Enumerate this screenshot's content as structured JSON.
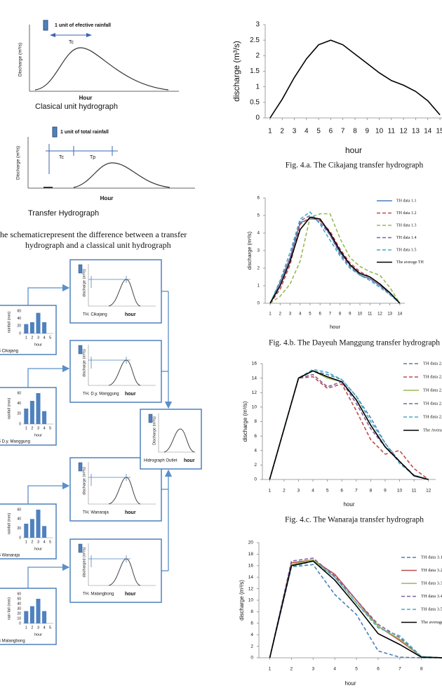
{
  "schematic": {
    "classical": {
      "legend": "1 unit of efective rainfall",
      "tc": "Tc",
      "y_label": "Discharge (m³/s)",
      "x_label": "Hour",
      "caption": "Clasical unit hydrograph"
    },
    "transfer": {
      "legend": "1 unit of total rainfall",
      "tc": "Tc",
      "tp": "Tp",
      "y_label": "Discharge  (m³/s)",
      "x_label": "Hour",
      "caption": "Transfer Hydrograph"
    },
    "caption_lines": [
      "he schematicrepresent the difference between a transfer",
      "hydrograph and a classical unit hydrograph"
    ]
  },
  "flow_diagram": {
    "stations": [
      {
        "label": "S Cikajang",
        "y_label": "rainfall (mm)",
        "x_label": "hour",
        "categories": [
          "1",
          "2",
          "3",
          "4",
          "5"
        ],
        "values": [
          25,
          30,
          55,
          30,
          null
        ],
        "yticks": [
          0,
          20,
          40,
          60
        ],
        "color": "#4f81bd"
      },
      {
        "label": "S D.y. Manggung",
        "y_label": "rainfall (mm)",
        "x_label": "hour",
        "categories": [
          "1",
          "2",
          "3",
          "4",
          "5"
        ],
        "values": [
          30,
          45,
          60,
          25,
          null
        ],
        "yticks": [
          0,
          20,
          40,
          60
        ],
        "color": "#4f81bd"
      },
      {
        "label": "S Wanaraja",
        "y_label": "rainfall (mm)",
        "x_label": "hour",
        "categories": [
          "1",
          "2",
          "3",
          "4",
          "5"
        ],
        "values": [
          30,
          40,
          60,
          25,
          null
        ],
        "yticks": [
          0,
          20,
          40,
          60
        ],
        "color": "#4f81bd"
      },
      {
        "label": "S Malangbong",
        "y_label": "rain fall (mm)",
        "x_label": "hour",
        "categories": [
          "1",
          "2",
          "3",
          "4",
          "5"
        ],
        "values": [
          25,
          35,
          50,
          25,
          null
        ],
        "yticks": [
          0,
          10,
          20,
          30,
          40,
          50,
          60
        ],
        "color": "#4f81bd"
      }
    ],
    "hydrographs": [
      {
        "label": "TH. Cikajang",
        "y_label": "discharge (m³/s)",
        "x_label": "hour"
      },
      {
        "label": "TH. D.y. Manggung",
        "y_label": "discharge (m³/s)",
        "x_label": "hour"
      },
      {
        "label": "TH. Wanaraja",
        "y_label": "discharge (m³/s)",
        "x_label": "hour"
      },
      {
        "label": "TH. Malangbong",
        "y_label": "discharged (m³/s)",
        "x_label": "hour"
      }
    ],
    "outlet": {
      "label": "Hidrograph Outlet",
      "y_label": "Discharge (m³/s)",
      "x_label": "hour"
    }
  },
  "chart_data": [
    {
      "type": "line",
      "x_label": "hour",
      "y_label": "discharge (m³/s)",
      "caption": "Fig. 4.a. The Cikajang transfer hydrograph",
      "x": [
        1,
        2,
        3,
        4,
        5,
        6,
        7,
        8,
        9,
        10,
        11,
        12,
        13,
        14,
        15
      ],
      "values": [
        0,
        0.6,
        1.3,
        1.9,
        2.35,
        2.5,
        2.35,
        2.05,
        1.75,
        1.45,
        1.2,
        1.05,
        0.85,
        0.55,
        0.1
      ],
      "color": "#000000",
      "xlim": [
        0.6,
        15.17
      ],
      "xticks": [
        1,
        2,
        3,
        4,
        5,
        6,
        7,
        8,
        9,
        10,
        11,
        12,
        13,
        14,
        15
      ],
      "ylim": [
        0,
        3
      ],
      "yticks": [
        0,
        0.5,
        1,
        1.5,
        2,
        2.5,
        3
      ]
    },
    {
      "type": "line",
      "x_label": "hour",
      "y_label": "discharge (m³/s)",
      "caption": "Fig. 4.b. The Dayeuh Manggung transfer hydrograph",
      "x": [
        1,
        2,
        3,
        4,
        5,
        6,
        7,
        8,
        9,
        10,
        11,
        12,
        13,
        14
      ],
      "series": [
        {
          "name": "TH data 1.1",
          "color": "#4a7ebb",
          "dashed": false,
          "values": [
            0,
            1.2,
            2.6,
            4.6,
            4.8,
            4.8,
            3.9,
            2.9,
            2.2,
            1.6,
            1.4,
            1.0,
            0.6,
            0
          ]
        },
        {
          "name": "TH data 1.2",
          "color": "#be4b48",
          "dashed": true,
          "values": [
            0,
            0.8,
            2.2,
            4.5,
            4.9,
            4.7,
            4.1,
            3.1,
            2.3,
            1.8,
            1.5,
            1.1,
            0.6,
            0
          ]
        },
        {
          "name": "TH data 1.3",
          "color": "#98b954",
          "dashed": true,
          "values": [
            0,
            0.4,
            1.1,
            2.4,
            4.9,
            5.1,
            5.1,
            3.7,
            2.6,
            2.1,
            1.8,
            1.6,
            0.9,
            0
          ]
        },
        {
          "name": "TH data 1.4",
          "color": "#7d60a0",
          "dashed": true,
          "values": [
            0,
            1.2,
            2.6,
            4.7,
            5.0,
            4.6,
            3.9,
            2.8,
            2.1,
            1.6,
            1.4,
            1.0,
            0.5,
            0
          ]
        },
        {
          "name": "TH data 1.5",
          "color": "#46aac5",
          "dashed": true,
          "values": [
            0,
            1.3,
            2.9,
            4.8,
            5.2,
            4.5,
            3.6,
            2.7,
            2.0,
            1.6,
            1.3,
            0.9,
            0.5,
            0
          ]
        },
        {
          "name": "The average TH",
          "color": "#000000",
          "dashed": false,
          "values": [
            0,
            1.0,
            2.4,
            4.2,
            4.9,
            4.8,
            4.0,
            3.0,
            2.2,
            1.7,
            1.5,
            1.1,
            0.6,
            0
          ]
        }
      ],
      "xlim": [
        0.5,
        14.5
      ],
      "xticks": [
        1,
        2,
        3,
        4,
        5,
        6,
        7,
        8,
        9,
        10,
        11,
        12,
        13,
        14
      ],
      "ylim": [
        0,
        6
      ],
      "yticks": [
        0,
        1,
        2,
        3,
        4,
        5,
        6
      ]
    },
    {
      "type": "line",
      "x_label": "hour",
      "y_label": "discharge (m³/s)",
      "caption": "Fig. 4.c. The Wanaraja transfer hydrograph",
      "x": [
        1,
        2,
        3,
        4,
        5,
        6,
        7,
        8,
        9,
        10,
        11,
        12
      ],
      "series": [
        {
          "name": "TH data 2.1",
          "color": "#4a7ebb",
          "dashed": true,
          "values": [
            0,
            7,
            14,
            15,
            14.5,
            13.8,
            11.5,
            8.5,
            5,
            2.5,
            0.6,
            0
          ]
        },
        {
          "name": "TH data 2.2",
          "color": "#be4b48",
          "dashed": true,
          "values": [
            0,
            7,
            14,
            14.2,
            12.6,
            13.2,
            9.5,
            5.5,
            3.5,
            4,
            1.5,
            0
          ]
        },
        {
          "name": "TH data 2.3",
          "color": "#98b954",
          "dashed": false,
          "values": [
            0,
            7,
            14,
            15,
            14,
            13.5,
            11,
            7.5,
            4.5,
            2.5,
            0.5,
            0
          ]
        },
        {
          "name": "TH data 2.4",
          "color": "#7d60a0",
          "dashed": true,
          "values": [
            0,
            7,
            14,
            14.5,
            12.8,
            13.5,
            10.5,
            7,
            4.5,
            2.5,
            0.5,
            0
          ]
        },
        {
          "name": "TH data 2.5",
          "color": "#46aac5",
          "dashed": true,
          "values": [
            0,
            7,
            14,
            15.2,
            14.8,
            13.8,
            11.5,
            8,
            5,
            2.2,
            0.6,
            0
          ]
        },
        {
          "name": "The Average TH",
          "color": "#000000",
          "dashed": false,
          "values": [
            0,
            7,
            14,
            15,
            14.2,
            13.5,
            11,
            7.5,
            4.5,
            2.5,
            0.5,
            0
          ]
        }
      ],
      "xlim": [
        0.5,
        12.5
      ],
      "xticks": [
        1,
        2,
        3,
        4,
        5,
        6,
        7,
        8,
        9,
        10,
        11,
        12
      ],
      "ylim": [
        0,
        16
      ],
      "yticks": [
        0,
        2,
        4,
        6,
        8,
        10,
        12,
        14,
        16
      ]
    },
    {
      "type": "line",
      "x_label": "hour",
      "y_label": "discharge (m³/s)",
      "x": [
        1,
        2,
        3,
        4,
        5,
        6,
        7,
        8,
        9
      ],
      "series": [
        {
          "name": "TH data 3.1",
          "color": "#4a7ebb",
          "dashed": true,
          "values": [
            0,
            15.8,
            16.2,
            11,
            7.5,
            1.2,
            0.1,
            0,
            0
          ]
        },
        {
          "name": "TH data 3.2",
          "color": "#be4b48",
          "dashed": false,
          "values": [
            0,
            16.5,
            17,
            14.5,
            10,
            5.5,
            3,
            0.2,
            0
          ]
        },
        {
          "name": "TH data 3.3",
          "color": "#98b954",
          "dashed": false,
          "values": [
            0,
            16.2,
            17,
            14,
            9.5,
            5.5,
            3.2,
            0.2,
            0
          ]
        },
        {
          "name": "TH data 3.4",
          "color": "#7d60a0",
          "dashed": true,
          "values": [
            0,
            16.8,
            17.3,
            14.2,
            10,
            5.8,
            3.5,
            0.2,
            0
          ]
        },
        {
          "name": "TH data 3.5",
          "color": "#46aac5",
          "dashed": true,
          "values": [
            0,
            15.8,
            16.8,
            14,
            9.5,
            5.2,
            3.8,
            0.2,
            0
          ]
        },
        {
          "name": "The average TH",
          "color": "#000000",
          "dashed": false,
          "values": [
            0,
            16,
            16.8,
            13.5,
            9,
            4.2,
            2.3,
            0.1,
            0
          ]
        }
      ],
      "xlim": [
        0.5,
        9.3
      ],
      "xticks": [
        1,
        2,
        3,
        4,
        5,
        6,
        7,
        8
      ],
      "ylim": [
        0,
        20
      ],
      "yticks": [
        0,
        2,
        4,
        6,
        8,
        10,
        12,
        14,
        16,
        18,
        20
      ]
    }
  ]
}
